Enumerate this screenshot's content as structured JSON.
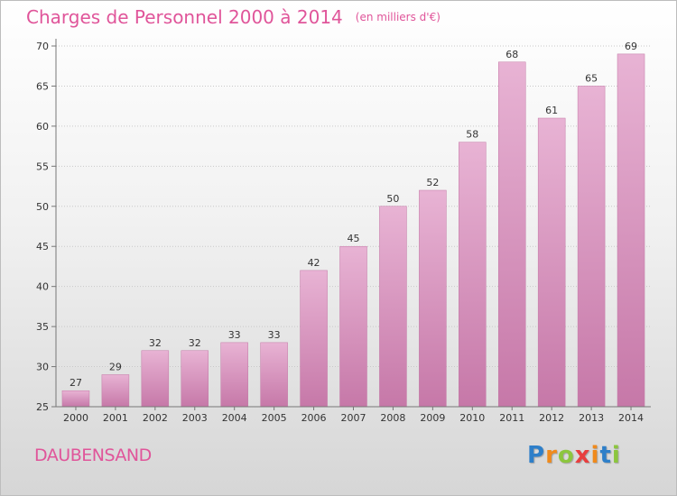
{
  "title": "Charges de Personnel 2000 à 2014",
  "subtitle": "(en milliers d'€)",
  "commune": "DAUBENSAND",
  "logo": {
    "letters": [
      "P",
      "r",
      "o",
      "x",
      "i",
      "t",
      "i"
    ],
    "colors": [
      "#2e7fc9",
      "#f08a1c",
      "#8cc63e",
      "#e83e3e",
      "#f08a1c",
      "#2e7fc9",
      "#8cc63e"
    ]
  },
  "colors": {
    "bar": "#d98fbc",
    "bar_light": "#e8b3d4",
    "bar_dark": "#c678a8",
    "accent": "#e0559a"
  },
  "chart_data": {
    "type": "bar",
    "categories": [
      "2000",
      "2001",
      "2002",
      "2003",
      "2004",
      "2005",
      "2006",
      "2007",
      "2008",
      "2009",
      "2010",
      "2011",
      "2012",
      "2013",
      "2014"
    ],
    "values": [
      27,
      29,
      32,
      32,
      33,
      33,
      42,
      45,
      50,
      52,
      58,
      68,
      61,
      65,
      69
    ],
    "title": "Charges de Personnel 2000 à 2014",
    "subtitle": "(en milliers d'€)",
    "xlabel": "",
    "ylabel": "",
    "ylim": [
      25,
      70
    ],
    "yticks": [
      25,
      30,
      35,
      40,
      45,
      50,
      55,
      60,
      65,
      70
    ],
    "grid": true,
    "data_labels": true
  }
}
